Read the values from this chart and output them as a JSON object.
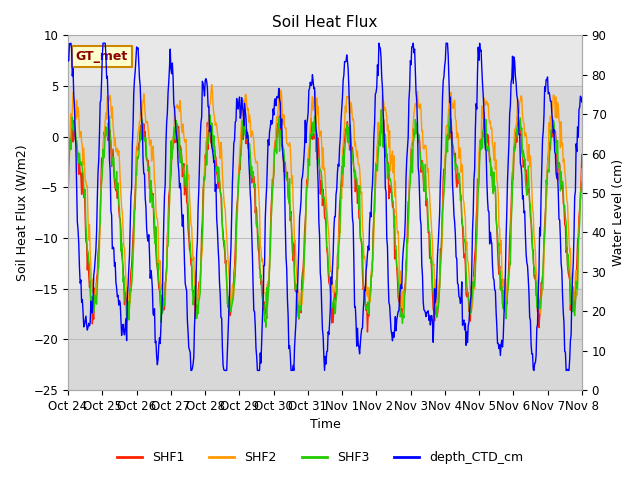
{
  "title": "Soil Heat Flux",
  "ylabel_left": "Soil Heat Flux (W/m2)",
  "ylabel_right": "Water Level (cm)",
  "xlabel": "Time",
  "ylim_left": [
    -25,
    10
  ],
  "ylim_right": [
    0,
    90
  ],
  "shaded_band_mid": [
    -5,
    5
  ],
  "shaded_band_low": [
    -25,
    -15
  ],
  "xtick_labels": [
    "Oct 24",
    "Oct 25",
    "Oct 26",
    "Oct 27",
    "Oct 28",
    "Oct 29",
    "Oct 30",
    "Oct 31",
    "Nov 1",
    "Nov 2",
    "Nov 3",
    "Nov 4",
    "Nov 5",
    "Nov 6",
    "Nov 7",
    "Nov 8"
  ],
  "annotation_text": "GT_met",
  "colors": {
    "SHF1": "#ff2200",
    "SHF2": "#ff9900",
    "SHF3": "#22cc00",
    "depth_CTD_cm": "#0000ff"
  },
  "background_color": "#e8e8e8",
  "shaded_color": "#d0d0d0",
  "grid_color": "#c0c0c0",
  "n_days": 15,
  "points_per_day": 48
}
